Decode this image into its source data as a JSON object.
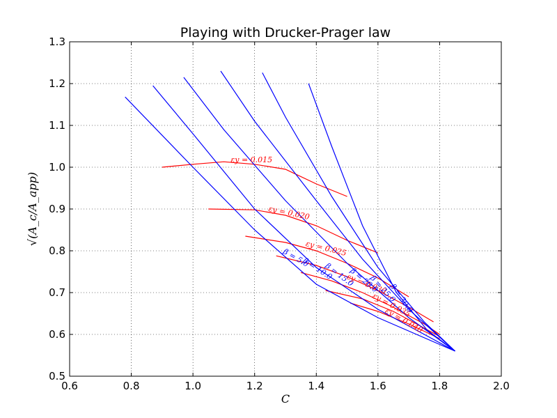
{
  "chart_data": {
    "type": "line",
    "title": "Playing with Drucker-Prager law",
    "xlabel": "C",
    "ylabel": "√(A_c/A_app)",
    "xlim": [
      0.6,
      2.0
    ],
    "ylim": [
      0.5,
      1.3
    ],
    "x_ticks": [
      0.6,
      0.8,
      1.0,
      1.2,
      1.4,
      1.6,
      1.8,
      2.0
    ],
    "y_ticks": [
      0.5,
      0.6,
      0.7,
      0.8,
      0.9,
      1.0,
      1.1,
      1.2,
      1.3
    ],
    "x_tick_labels": [
      "0.6",
      "0.8",
      "1.0",
      "1.2",
      "1.4",
      "1.6",
      "1.8",
      "2.0"
    ],
    "y_tick_labels": [
      "0.5",
      "0.6",
      "0.7",
      "0.8",
      "0.9",
      "1.0",
      "1.1",
      "1.2",
      "1.3"
    ],
    "grid": true,
    "colors": {
      "beta": "#0000ff",
      "eps": "#ff0000"
    },
    "beta_series": [
      {
        "label": "β = 5.0",
        "points": [
          [
            0.78,
            1.168
          ],
          [
            1.0,
            1.0
          ],
          [
            1.2,
            0.85
          ],
          [
            1.4,
            0.72
          ],
          [
            1.6,
            0.64
          ],
          [
            1.85,
            0.56
          ]
        ]
      },
      {
        "label": "β = 10.0",
        "points": [
          [
            0.87,
            1.195
          ],
          [
            1.0,
            1.08
          ],
          [
            1.2,
            0.9
          ],
          [
            1.4,
            0.76
          ],
          [
            1.6,
            0.66
          ],
          [
            1.85,
            0.56
          ]
        ]
      },
      {
        "label": "β = 15.0",
        "points": [
          [
            0.97,
            1.215
          ],
          [
            1.1,
            1.09
          ],
          [
            1.3,
            0.92
          ],
          [
            1.5,
            0.77
          ],
          [
            1.7,
            0.64
          ],
          [
            1.85,
            0.56
          ]
        ]
      },
      {
        "label": "β = 20.0",
        "points": [
          [
            1.09,
            1.23
          ],
          [
            1.2,
            1.11
          ],
          [
            1.4,
            0.92
          ],
          [
            1.55,
            0.78
          ],
          [
            1.7,
            0.66
          ],
          [
            1.85,
            0.56
          ]
        ]
      },
      {
        "label": "β = 25.0",
        "points": [
          [
            1.225,
            1.226
          ],
          [
            1.3,
            1.12
          ],
          [
            1.45,
            0.93
          ],
          [
            1.6,
            0.76
          ],
          [
            1.75,
            0.63
          ],
          [
            1.85,
            0.56
          ]
        ]
      },
      {
        "label": "β = 30.0",
        "points": [
          [
            1.375,
            1.2
          ],
          [
            1.45,
            1.05
          ],
          [
            1.55,
            0.86
          ],
          [
            1.66,
            0.7
          ],
          [
            1.76,
            0.61
          ],
          [
            1.85,
            0.56
          ]
        ]
      }
    ],
    "eps_series": [
      {
        "label": "εy = 0.015",
        "points": [
          [
            0.9,
            1.0
          ],
          [
            1.0,
            1.007
          ],
          [
            1.1,
            1.013
          ],
          [
            1.2,
            1.007
          ],
          [
            1.3,
            0.995
          ],
          [
            1.4,
            0.96
          ],
          [
            1.5,
            0.93
          ]
        ]
      },
      {
        "label": "εy = 0.020",
        "points": [
          [
            1.05,
            0.9
          ],
          [
            1.2,
            0.898
          ],
          [
            1.3,
            0.885
          ],
          [
            1.4,
            0.86
          ],
          [
            1.5,
            0.825
          ],
          [
            1.6,
            0.795
          ]
        ]
      },
      {
        "label": "εy = 0.025",
        "points": [
          [
            1.17,
            0.835
          ],
          [
            1.3,
            0.82
          ],
          [
            1.4,
            0.8
          ],
          [
            1.5,
            0.77
          ],
          [
            1.6,
            0.735
          ],
          [
            1.7,
            0.69
          ]
        ]
      },
      {
        "label": "εy = 0.030",
        "points": [
          [
            1.27,
            0.788
          ],
          [
            1.4,
            0.765
          ],
          [
            1.5,
            0.738
          ],
          [
            1.6,
            0.705
          ],
          [
            1.7,
            0.665
          ],
          [
            1.78,
            0.63
          ]
        ]
      },
      {
        "label": "εy = 0.035",
        "points": [
          [
            1.35,
            0.748
          ],
          [
            1.45,
            0.728
          ],
          [
            1.55,
            0.7
          ],
          [
            1.65,
            0.665
          ],
          [
            1.75,
            0.625
          ],
          [
            1.8,
            0.6
          ]
        ]
      },
      {
        "label": "εy = 0.040",
        "points": [
          [
            1.43,
            0.705
          ],
          [
            1.55,
            0.685
          ],
          [
            1.65,
            0.655
          ],
          [
            1.75,
            0.615
          ],
          [
            1.8,
            0.595
          ]
        ]
      },
      {
        "label": "εy = 0.045",
        "points": [
          [
            1.51,
            0.675
          ],
          [
            1.6,
            0.655
          ],
          [
            1.7,
            0.625
          ],
          [
            1.8,
            0.59
          ]
        ]
      }
    ],
    "contour_labels": [
      {
        "text": "εy = 0.015",
        "series": "eps",
        "at": [
          1.19,
          1.012
        ],
        "angle": 0
      },
      {
        "text": "εy = 0.020",
        "series": "eps",
        "at": [
          1.31,
          0.885
        ],
        "angle": 12
      },
      {
        "text": "εy = 0.025",
        "series": "eps",
        "at": [
          1.43,
          0.8
        ],
        "angle": 14
      },
      {
        "text": "εy = 0.030",
        "series": "eps",
        "at": [
          1.56,
          0.715
        ],
        "angle": 22
      },
      {
        "text": "εy = 0.035",
        "series": "eps",
        "at": [
          1.64,
          0.665
        ],
        "angle": 28
      },
      {
        "text": "εy = 0.040",
        "series": "eps",
        "at": [
          1.68,
          0.628
        ],
        "angle": 30
      },
      {
        "text": "β = 5.0",
        "series": "beta",
        "at": [
          1.33,
          0.778
        ],
        "angle": 30
      },
      {
        "text": "β = 10.0",
        "series": "beta",
        "at": [
          1.4,
          0.752
        ],
        "angle": 33
      },
      {
        "text": "β = 15.0",
        "series": "beta",
        "at": [
          1.47,
          0.738
        ],
        "angle": 37
      },
      {
        "text": "β = 20.0",
        "series": "beta",
        "at": [
          1.55,
          0.725
        ],
        "angle": 40
      },
      {
        "text": "β = 25.0",
        "series": "beta",
        "at": [
          1.61,
          0.705
        ],
        "angle": 48
      },
      {
        "text": "β = 30.0",
        "series": "beta",
        "at": [
          1.67,
          0.683
        ],
        "angle": 55
      }
    ]
  }
}
